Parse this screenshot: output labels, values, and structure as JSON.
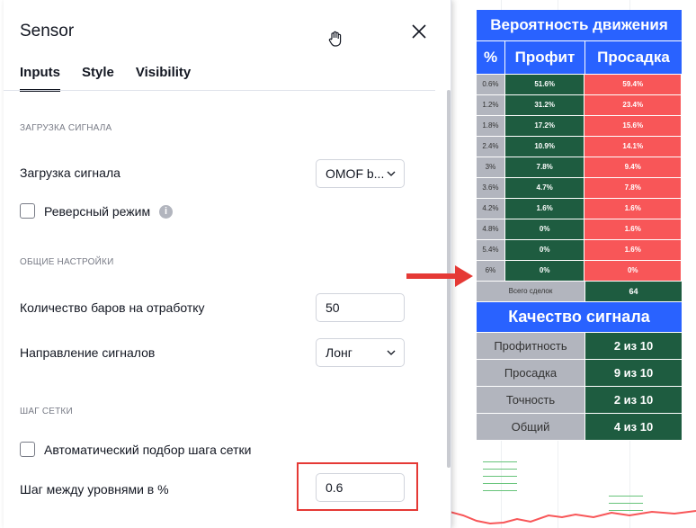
{
  "dialog": {
    "title": "Sensor",
    "tabs": [
      {
        "label": "Inputs",
        "active": true
      },
      {
        "label": "Style",
        "active": false
      },
      {
        "label": "Visibility",
        "active": false
      }
    ],
    "sections": {
      "signal": "ЗАГРУЗКА СИГНАЛА",
      "general": "ОБЩИЕ НАСТРОЙКИ",
      "grid": "ШАГ СЕТКИ"
    },
    "fields": {
      "signal_load_label": "Загрузка сигнала",
      "signal_load_value": "OMOF b...",
      "reverse_label": "Реверсный режим",
      "bars_label": "Количество баров на отработку",
      "bars_value": "50",
      "direction_label": "Направление сигналов",
      "direction_value": "Лонг",
      "auto_grid_label": "Автоматический подбор шага сетки",
      "step_label": "Шаг между уровнями в %",
      "step_value": "0.6"
    },
    "info_icon": "i"
  },
  "table": {
    "prob_title": "Вероятность движения",
    "headers": [
      "%",
      "Профит",
      "Просадка"
    ],
    "rows": [
      {
        "pct": "0.6%",
        "profit": "51.6%",
        "drawdown": "59.4%"
      },
      {
        "pct": "1.2%",
        "profit": "31.2%",
        "drawdown": "23.4%"
      },
      {
        "pct": "1.8%",
        "profit": "17.2%",
        "drawdown": "15.6%"
      },
      {
        "pct": "2.4%",
        "profit": "10.9%",
        "drawdown": "14.1%"
      },
      {
        "pct": "3%",
        "profit": "7.8%",
        "drawdown": "9.4%"
      },
      {
        "pct": "3.6%",
        "profit": "4.7%",
        "drawdown": "7.8%"
      },
      {
        "pct": "4.2%",
        "profit": "1.6%",
        "drawdown": "1.6%"
      },
      {
        "pct": "4.8%",
        "profit": "0%",
        "drawdown": "1.6%"
      },
      {
        "pct": "5.4%",
        "profit": "0%",
        "drawdown": "1.6%"
      },
      {
        "pct": "6%",
        "profit": "0%",
        "drawdown": "0%"
      }
    ],
    "total_label": "Всего сделок",
    "total_value": "64",
    "quality_title": "Качество сигнала",
    "quality": [
      {
        "label": "Профитность",
        "value": "2 из 10"
      },
      {
        "label": "Просадка",
        "value": "9 из 10"
      },
      {
        "label": "Точность",
        "value": "2 из 10"
      },
      {
        "label": "Общий",
        "value": "4 из 10"
      }
    ]
  },
  "colors": {
    "header_blue": "#2962ff",
    "profit_green": "#1e5c40",
    "drawdown_red": "#f85658",
    "arrow_red": "#e53935"
  }
}
